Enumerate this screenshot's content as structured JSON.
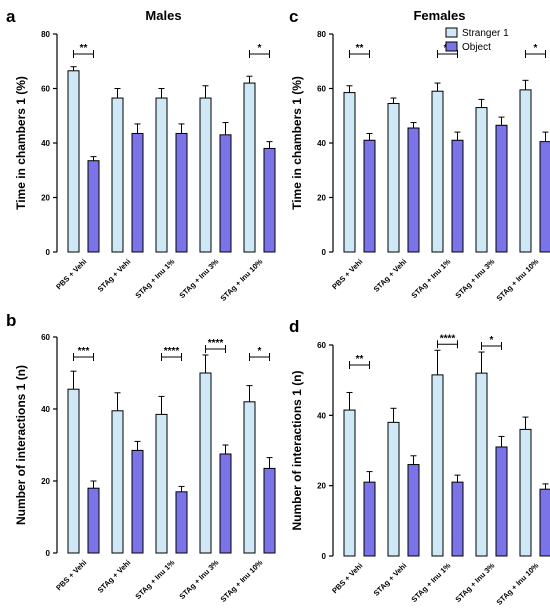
{
  "figure": {
    "colors": {
      "stranger": "#cfe8f6",
      "object": "#7b73e8",
      "axis": "#000000"
    }
  },
  "chart_data": [
    {
      "panel": "a",
      "type": "bar",
      "title": "Males",
      "ylabel": "Time in chambers 1 (%)",
      "ylim": [
        0,
        80
      ],
      "yticks": [
        0,
        20,
        40,
        60,
        80
      ],
      "categories": [
        "PBS + Vehi",
        "STAg + Vehi",
        "STAg + Inu 1%",
        "STAg + Inu 3%",
        "STAg + Inu 10%"
      ],
      "series": [
        {
          "name": "Stranger 1",
          "values": [
            66.5,
            56.5,
            56.5,
            56.5,
            62
          ],
          "errors": [
            1.5,
            3.5,
            3.5,
            4.5,
            2.5
          ]
        },
        {
          "name": "Object",
          "values": [
            33.5,
            43.5,
            43.5,
            43,
            38
          ],
          "errors": [
            1.5,
            3.5,
            3.5,
            4.5,
            2.5
          ]
        }
      ],
      "significance": [
        {
          "category": 0,
          "label": "**"
        },
        {
          "category": 4,
          "label": "*"
        }
      ]
    },
    {
      "panel": "c",
      "type": "bar",
      "title": "Females",
      "ylabel": "Time in chambers 1 (%)",
      "ylim": [
        0,
        80
      ],
      "yticks": [
        0,
        20,
        40,
        60,
        80
      ],
      "legend": "top-right",
      "categories": [
        "PBS + Vehi",
        "STAg + Vehi",
        "STAg + Inu 1%",
        "STAg + Inu 3%",
        "STAg + Inu 10%"
      ],
      "series": [
        {
          "name": "Stranger 1",
          "values": [
            58.5,
            54.5,
            59,
            53,
            59.5
          ],
          "errors": [
            2.5,
            2,
            3,
            3,
            3.5
          ]
        },
        {
          "name": "Object",
          "values": [
            41,
            45.5,
            41,
            46.5,
            40.5
          ],
          "errors": [
            2.5,
            2,
            3,
            3,
            3.5
          ]
        }
      ],
      "significance": [
        {
          "category": 0,
          "label": "**"
        },
        {
          "category": 2,
          "label": "**"
        },
        {
          "category": 4,
          "label": "*"
        }
      ]
    },
    {
      "panel": "b",
      "type": "bar",
      "title": "",
      "ylabel": "Number of interactions 1 (n)",
      "ylim": [
        0,
        60
      ],
      "yticks": [
        0,
        20,
        40,
        60
      ],
      "categories": [
        "PBS + Vehi",
        "STAg + Vehi",
        "STAg + Inu 1%",
        "STAg + Inu 3%",
        "STAg + Inu 10%"
      ],
      "series": [
        {
          "name": "Stranger 1",
          "values": [
            45.5,
            39.5,
            38.5,
            50,
            42
          ],
          "errors": [
            5,
            5,
            5,
            5,
            4.5
          ]
        },
        {
          "name": "Object",
          "values": [
            18,
            28.5,
            17,
            27.5,
            23.5
          ],
          "errors": [
            2,
            2.5,
            1.5,
            2.5,
            3
          ]
        }
      ],
      "significance": [
        {
          "category": 0,
          "label": "***"
        },
        {
          "category": 2,
          "label": "****"
        },
        {
          "category": 3,
          "label": "****"
        },
        {
          "category": 4,
          "label": "*"
        }
      ]
    },
    {
      "panel": "d",
      "type": "bar",
      "title": "",
      "ylabel": "Number of interactions 1 (n)",
      "ylim": [
        0,
        60
      ],
      "yticks": [
        0,
        20,
        40,
        60
      ],
      "categories": [
        "PBS + Vehi",
        "STAg + Vehi",
        "STAg + Inu 1%",
        "STAg + Inu 3%",
        "STAg + Inu 10%"
      ],
      "series": [
        {
          "name": "Stranger 1",
          "values": [
            41.5,
            38,
            51.5,
            52,
            36
          ],
          "errors": [
            5,
            4,
            7,
            6,
            3.5
          ]
        },
        {
          "name": "Object",
          "values": [
            21,
            26,
            21,
            31,
            19
          ],
          "errors": [
            3,
            2.5,
            2,
            3,
            1.5
          ]
        }
      ],
      "significance": [
        {
          "category": 0,
          "label": "**"
        },
        {
          "category": 2,
          "label": "****"
        },
        {
          "category": 3,
          "label": "*"
        }
      ]
    }
  ]
}
